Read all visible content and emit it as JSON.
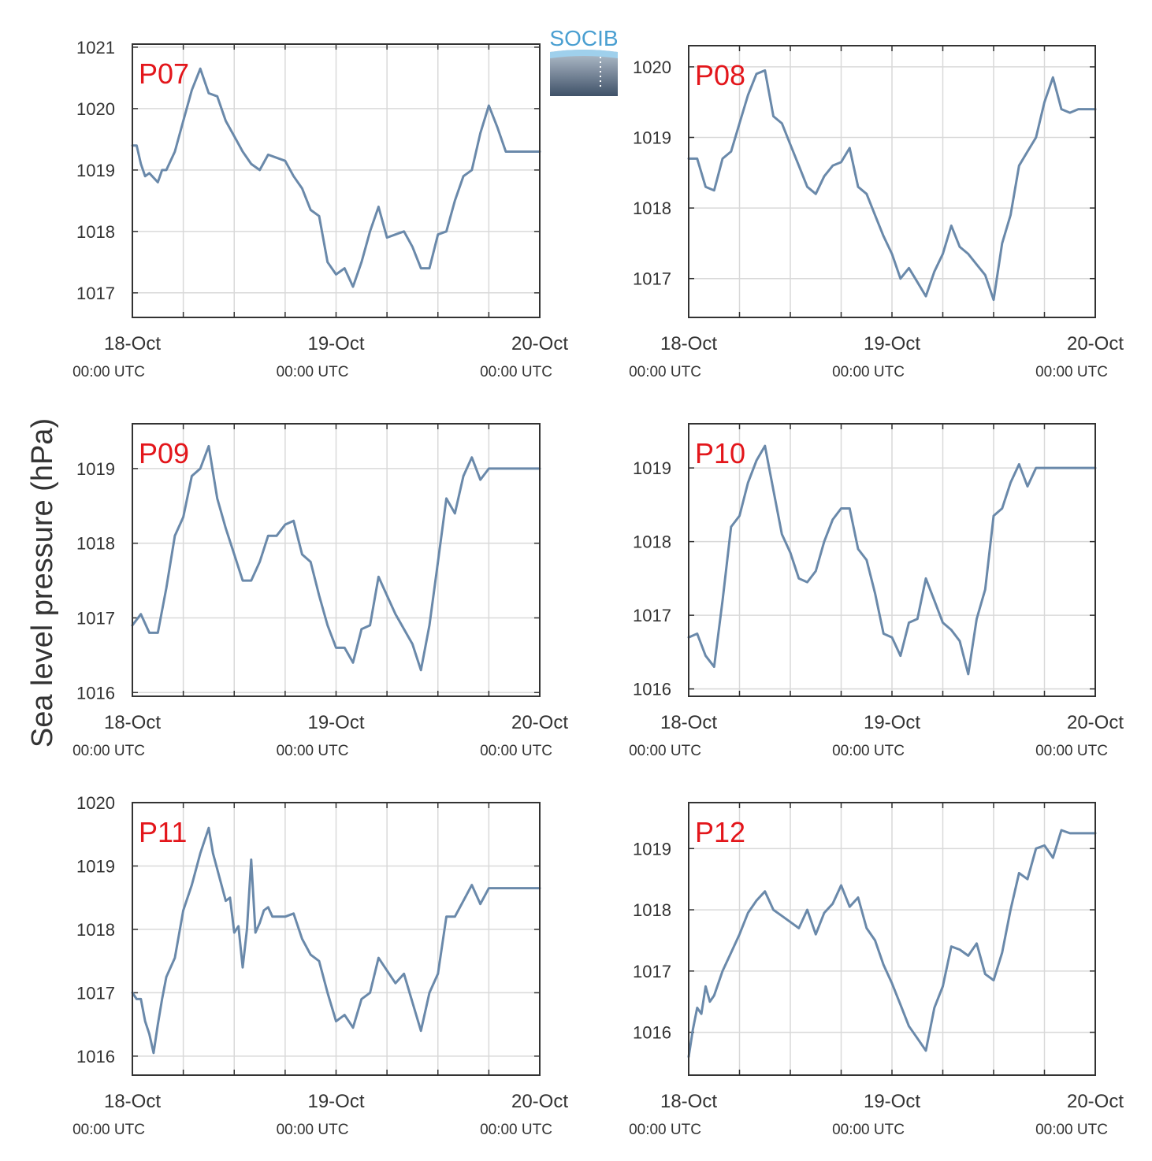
{
  "figure": {
    "ylabel": "Sea level pressure (hPa)",
    "logo_text": "SOCIB",
    "x_ticks": [
      {
        "day": "18-Oct",
        "time": "00:00 UTC"
      },
      {
        "day": "19-Oct",
        "time": "00:00 UTC"
      },
      {
        "day": "20-Oct",
        "time": "00:00 UTC"
      }
    ]
  },
  "colors": {
    "line": "#6a89aa",
    "label": "#e3161b",
    "grid": "#d9d9d9",
    "axis": "#333333"
  },
  "chart_data": [
    {
      "type": "line",
      "label": "P07",
      "xlim": [
        0,
        48
      ],
      "ylim": [
        1016.6,
        1021.05
      ],
      "yticks": [
        1017,
        1018,
        1019,
        1020,
        1021
      ],
      "x": [
        0,
        0.5,
        1,
        1.5,
        2,
        3,
        3.5,
        4,
        5,
        6,
        7,
        8,
        9,
        10,
        11,
        12,
        13,
        14,
        15,
        16,
        17,
        18,
        19,
        20,
        21,
        22,
        23,
        24,
        25,
        26,
        27,
        28,
        29,
        30,
        31,
        32,
        33,
        34,
        35,
        36,
        37,
        38,
        39,
        40,
        41,
        42,
        43,
        44,
        45,
        46,
        47,
        48
      ],
      "values": [
        1019.4,
        1019.4,
        1019.1,
        1018.9,
        1018.95,
        1018.8,
        1019.0,
        1019.0,
        1019.3,
        1019.8,
        1020.3,
        1020.65,
        1020.25,
        1020.2,
        1019.8,
        1019.55,
        1019.3,
        1019.1,
        1019.0,
        1019.25,
        1019.2,
        1019.15,
        1018.9,
        1018.7,
        1018.35,
        1018.25,
        1017.5,
        1017.3,
        1017.4,
        1017.1,
        1017.5,
        1018.0,
        1018.4,
        1017.9,
        1017.95,
        1018.0,
        1017.75,
        1017.4,
        1017.4,
        1017.95,
        1018.0,
        1018.5,
        1018.9,
        1019.0,
        1019.6,
        1020.05,
        1019.7,
        1019.3,
        1019.3,
        1019.3,
        1019.3,
        1019.3
      ]
    },
    {
      "type": "line",
      "label": "P08",
      "xlim": [
        0,
        48
      ],
      "ylim": [
        1016.45,
        1020.3
      ],
      "yticks": [
        1017,
        1018,
        1019,
        1020
      ],
      "x": [
        0,
        1,
        2,
        3,
        4,
        5,
        6,
        7,
        8,
        9,
        10,
        11,
        12,
        13,
        14,
        15,
        16,
        17,
        18,
        19,
        20,
        21,
        22,
        23,
        24,
        25,
        26,
        27,
        28,
        29,
        30,
        31,
        32,
        33,
        34,
        35,
        36,
        37,
        38,
        39,
        40,
        41,
        42,
        43,
        44,
        45,
        46,
        47,
        48
      ],
      "values": [
        1018.7,
        1018.7,
        1018.3,
        1018.25,
        1018.7,
        1018.8,
        1019.2,
        1019.6,
        1019.9,
        1019.95,
        1019.3,
        1019.2,
        1018.9,
        1018.6,
        1018.3,
        1018.2,
        1018.45,
        1018.6,
        1018.65,
        1018.85,
        1018.3,
        1018.2,
        1017.9,
        1017.6,
        1017.35,
        1017.0,
        1017.15,
        1016.95,
        1016.75,
        1017.1,
        1017.35,
        1017.75,
        1017.45,
        1017.35,
        1017.2,
        1017.05,
        1016.7,
        1017.5,
        1017.9,
        1018.6,
        1018.8,
        1019.0,
        1019.5,
        1019.85,
        1019.4,
        1019.35,
        1019.4,
        1019.4,
        1019.4
      ]
    },
    {
      "type": "line",
      "label": "P09",
      "xlim": [
        0,
        48
      ],
      "ylim": [
        1015.95,
        1019.6
      ],
      "yticks": [
        1016,
        1017,
        1018,
        1019
      ],
      "x": [
        0,
        1,
        2,
        3,
        4,
        5,
        6,
        7,
        8,
        9,
        10,
        11,
        12,
        13,
        14,
        15,
        16,
        17,
        18,
        19,
        20,
        21,
        22,
        23,
        24,
        25,
        26,
        27,
        28,
        29,
        30,
        31,
        32,
        33,
        34,
        35,
        36,
        37,
        38,
        39,
        40,
        41,
        42,
        43,
        44,
        45,
        46,
        47,
        48
      ],
      "values": [
        1016.9,
        1017.05,
        1016.8,
        1016.8,
        1017.4,
        1018.1,
        1018.35,
        1018.9,
        1019.0,
        1019.3,
        1018.6,
        1018.2,
        1017.85,
        1017.5,
        1017.5,
        1017.75,
        1018.1,
        1018.1,
        1018.25,
        1018.3,
        1017.85,
        1017.75,
        1017.3,
        1016.9,
        1016.6,
        1016.6,
        1016.4,
        1016.85,
        1016.9,
        1017.55,
        1017.3,
        1017.05,
        1016.85,
        1016.65,
        1016.3,
        1016.9,
        1017.75,
        1018.6,
        1018.4,
        1018.9,
        1019.15,
        1018.85,
        1019.0,
        1019.0,
        1019.0,
        1019.0,
        1019.0,
        1019.0,
        1019.0
      ]
    },
    {
      "type": "line",
      "label": "P10",
      "xlim": [
        0,
        48
      ],
      "ylim": [
        1015.9,
        1019.6
      ],
      "yticks": [
        1016,
        1017,
        1018,
        1019
      ],
      "x": [
        0,
        1,
        2,
        3,
        4,
        5,
        6,
        7,
        8,
        9,
        10,
        11,
        12,
        13,
        14,
        15,
        16,
        17,
        18,
        19,
        20,
        21,
        22,
        23,
        24,
        25,
        26,
        27,
        28,
        29,
        30,
        31,
        32,
        33,
        34,
        35,
        36,
        37,
        38,
        39,
        40,
        41,
        42,
        43,
        44,
        45,
        46,
        47,
        48
      ],
      "values": [
        1016.7,
        1016.75,
        1016.45,
        1016.3,
        1017.2,
        1018.2,
        1018.35,
        1018.8,
        1019.1,
        1019.3,
        1018.7,
        1018.1,
        1017.85,
        1017.5,
        1017.45,
        1017.6,
        1018.0,
        1018.3,
        1018.45,
        1018.45,
        1017.9,
        1017.75,
        1017.3,
        1016.75,
        1016.7,
        1016.45,
        1016.9,
        1016.95,
        1017.5,
        1017.2,
        1016.9,
        1016.8,
        1016.65,
        1016.2,
        1016.95,
        1017.35,
        1018.35,
        1018.45,
        1018.8,
        1019.05,
        1018.75,
        1019.0,
        1019.0,
        1019.0,
        1019.0,
        1019.0,
        1019.0,
        1019.0,
        1019.0
      ]
    },
    {
      "type": "line",
      "label": "P11",
      "xlim": [
        0,
        48
      ],
      "ylim": [
        1015.7,
        1020.0
      ],
      "yticks": [
        1016,
        1017,
        1018,
        1019,
        1020
      ],
      "x": [
        0,
        0.5,
        1,
        1.5,
        2,
        2.5,
        3,
        3.5,
        4,
        5,
        6,
        7,
        8,
        9,
        9.5,
        10,
        11,
        11.5,
        12,
        12.5,
        13,
        13.5,
        14,
        14.5,
        15,
        15.5,
        16,
        16.5,
        17,
        18,
        19,
        20,
        21,
        22,
        23,
        24,
        25,
        26,
        27,
        28,
        29,
        30,
        31,
        32,
        33,
        34,
        35,
        36,
        37,
        38,
        39,
        40,
        41,
        42,
        43,
        44,
        45,
        46,
        47,
        48
      ],
      "values": [
        1017.0,
        1016.9,
        1016.9,
        1016.55,
        1016.35,
        1016.05,
        1016.5,
        1016.9,
        1017.25,
        1017.55,
        1018.3,
        1018.7,
        1019.2,
        1019.6,
        1019.2,
        1018.95,
        1018.45,
        1018.5,
        1017.95,
        1018.05,
        1017.4,
        1018.0,
        1019.1,
        1017.95,
        1018.1,
        1018.3,
        1018.35,
        1018.2,
        1018.2,
        1018.2,
        1018.25,
        1017.85,
        1017.6,
        1017.5,
        1017.0,
        1016.55,
        1016.65,
        1016.45,
        1016.9,
        1017.0,
        1017.55,
        1017.35,
        1017.15,
        1017.3,
        1016.85,
        1016.4,
        1017.0,
        1017.3,
        1018.2,
        1018.2,
        1018.45,
        1018.7,
        1018.4,
        1018.65,
        1018.65,
        1018.65,
        1018.65,
        1018.65,
        1018.65,
        1018.65
      ]
    },
    {
      "type": "line",
      "label": "P12",
      "xlim": [
        0,
        48
      ],
      "ylim": [
        1015.3,
        1019.75
      ],
      "yticks": [
        1016,
        1017,
        1018,
        1019
      ],
      "x": [
        0,
        0.5,
        1,
        1.5,
        2,
        2.5,
        3,
        4,
        5,
        6,
        7,
        8,
        9,
        10,
        11,
        12,
        13,
        14,
        15,
        16,
        17,
        18,
        19,
        20,
        21,
        22,
        23,
        24,
        25,
        26,
        27,
        28,
        29,
        30,
        31,
        32,
        33,
        34,
        35,
        36,
        37,
        38,
        39,
        40,
        41,
        42,
        43,
        44,
        45,
        46,
        47,
        48
      ],
      "values": [
        1015.6,
        1016.05,
        1016.4,
        1016.3,
        1016.75,
        1016.5,
        1016.6,
        1017.0,
        1017.3,
        1017.6,
        1017.95,
        1018.15,
        1018.3,
        1018.0,
        1017.9,
        1017.8,
        1017.7,
        1018.0,
        1017.6,
        1017.95,
        1018.1,
        1018.4,
        1018.05,
        1018.2,
        1017.7,
        1017.5,
        1017.1,
        1016.8,
        1016.45,
        1016.1,
        1015.9,
        1015.7,
        1016.4,
        1016.75,
        1017.4,
        1017.35,
        1017.25,
        1017.45,
        1016.95,
        1016.85,
        1017.3,
        1018.0,
        1018.6,
        1018.5,
        1019.0,
        1019.05,
        1018.85,
        1019.3,
        1019.25,
        1019.25,
        1019.25,
        1019.25
      ]
    }
  ]
}
